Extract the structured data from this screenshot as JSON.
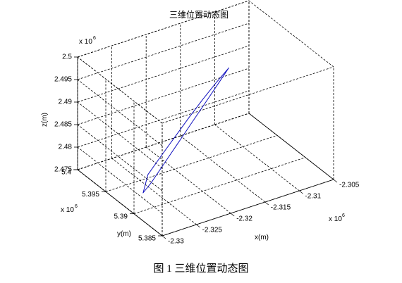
{
  "figure": {
    "caption": "图 1  三维位置动态图"
  },
  "colors": {
    "axis": "#000000",
    "grid": "#000000",
    "trajectory": "#1010c0",
    "background": "#ffffff"
  },
  "chart_data": {
    "type": "line3d",
    "title": "三维位置动态图",
    "xlabel": "x(m)",
    "ylabel": "y(m)",
    "zlabel": "z(m)",
    "x_exponent": "x 10",
    "y_exponent": "x 10",
    "z_exponent": "x 10",
    "exponent_power": "6",
    "xlim": [
      -2.33,
      -2.305
    ],
    "ylim": [
      5.385,
      5.4
    ],
    "zlim": [
      2.475,
      2.5
    ],
    "x_ticks": [
      "-2.33",
      "-2.325",
      "-2.32",
      "-2.315",
      "-2.31",
      "-2.305"
    ],
    "y_ticks": [
      "5.385",
      "5.39",
      "5.395",
      "5.4"
    ],
    "z_ticks": [
      "2.475",
      "2.48",
      "2.485",
      "2.49",
      "2.495",
      "2.5"
    ],
    "grid": true,
    "box": true,
    "series": [
      {
        "x": [
          -2.3255,
          -2.3235,
          -2.3215,
          -2.3195,
          -2.3175,
          -2.3155,
          -2.3137,
          -2.315,
          -2.317,
          -2.319,
          -2.321,
          -2.323,
          -2.325,
          -2.3262,
          -2.3255
        ],
        "y": [
          5.393,
          5.393,
          5.393,
          5.393,
          5.393,
          5.393,
          5.393,
          5.393,
          5.393,
          5.393,
          5.393,
          5.393,
          5.393,
          5.393,
          5.393
        ],
        "z": [
          2.4785,
          2.4818,
          2.485,
          2.4882,
          2.4912,
          2.494,
          2.4963,
          2.494,
          2.4905,
          2.487,
          2.4835,
          2.48,
          2.4765,
          2.4748,
          2.4785
        ]
      }
    ]
  }
}
